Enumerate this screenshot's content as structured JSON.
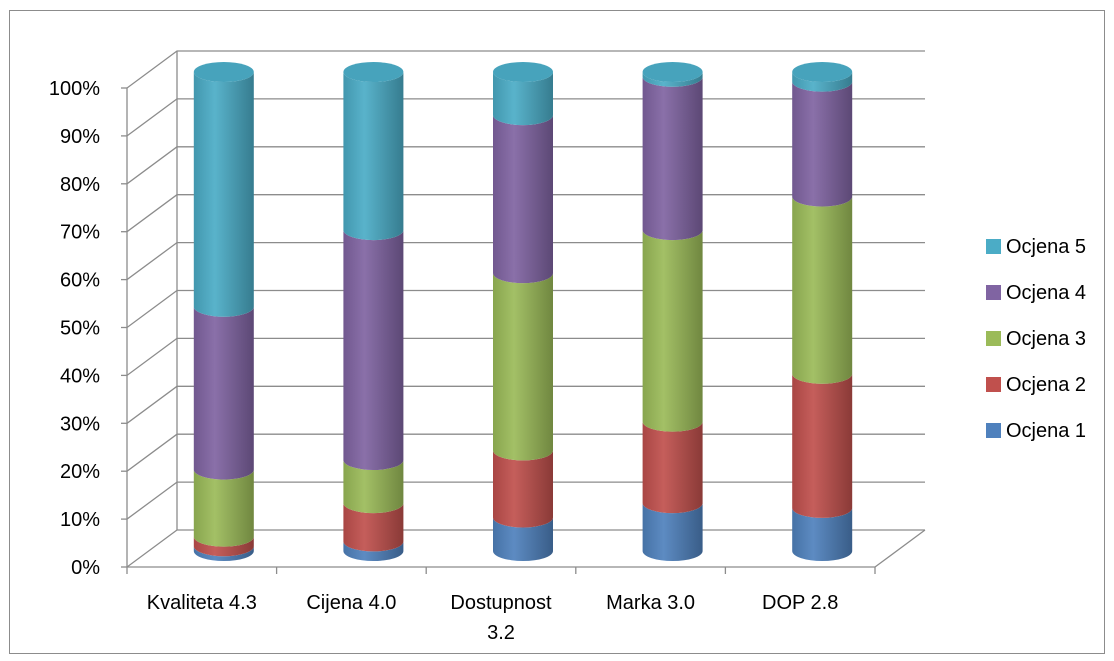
{
  "chart_data": {
    "type": "bar",
    "stacked": "percent",
    "three_d": true,
    "bar_shape": "cylinder",
    "categories": [
      [
        "Kvaliteta 4.3"
      ],
      [
        "Cijena 4.0"
      ],
      [
        "Dostupnost",
        "3.2"
      ],
      [
        "Marka 3.0"
      ],
      [
        "DOP 2.8"
      ]
    ],
    "series": [
      {
        "name": "Ocjena 1",
        "color": "#4f81bd",
        "values": [
          1,
          2,
          7,
          10,
          9
        ]
      },
      {
        "name": "Ocjena 2",
        "color": "#c0504d",
        "values": [
          2,
          8,
          14,
          17,
          28
        ]
      },
      {
        "name": "Ocjena 3",
        "color": "#9bbb59",
        "values": [
          14,
          9,
          37,
          40,
          37
        ]
      },
      {
        "name": "Ocjena 4",
        "color": "#8064a2",
        "values": [
          34,
          48,
          33,
          32,
          24
        ]
      },
      {
        "name": "Ocjena 5",
        "color": "#4bacc6",
        "values": [
          49,
          33,
          9,
          1,
          2
        ]
      }
    ],
    "yticks": [
      "0%",
      "10%",
      "20%",
      "30%",
      "40%",
      "50%",
      "60%",
      "70%",
      "80%",
      "90%",
      "100%"
    ],
    "ylim": [
      0,
      100
    ],
    "grid": true,
    "legend": "right"
  }
}
